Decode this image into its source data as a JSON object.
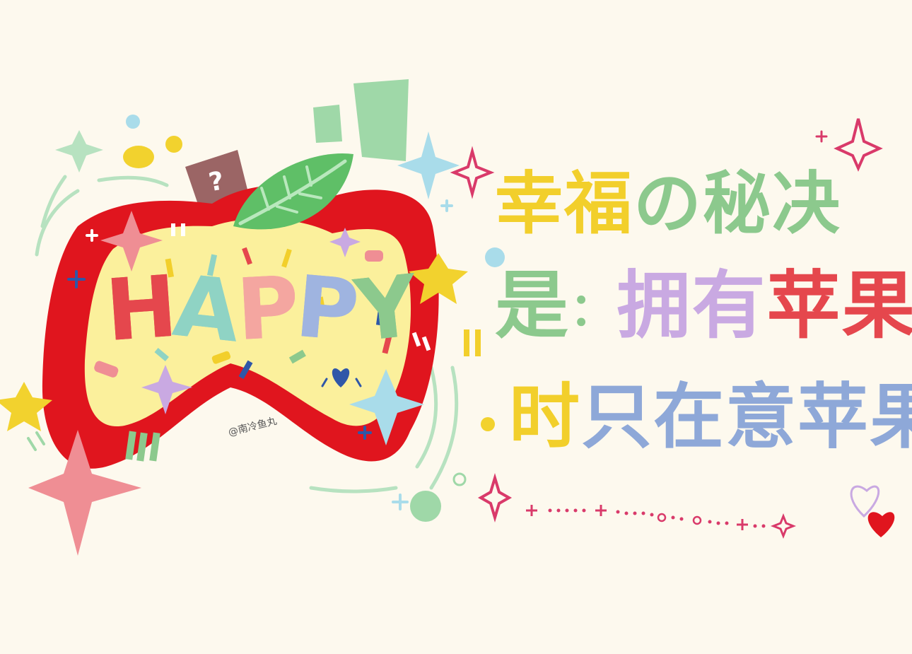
{
  "artwork": {
    "happy_word": [
      "H",
      "A",
      "P",
      "P",
      "Y"
    ],
    "happy_colors": [
      "#e5474d",
      "#8fd3c4",
      "#f4a6a0",
      "#9fb4e0",
      "#8cc98d"
    ],
    "line1": {
      "chars": [
        "幸",
        "福",
        "の",
        "秘",
        "决"
      ],
      "colors": [
        "#f2cf2b",
        "#f2cf2b",
        "#8cc98d",
        "#8cc98d",
        "#8cc98d"
      ]
    },
    "line2": {
      "chars": [
        "是",
        "：",
        "拥",
        "有",
        "苹",
        "果"
      ],
      "colors": [
        "#8cc98d",
        "#8cc98d",
        "#c9a9e2",
        "#c9a9e2",
        "#e5474d",
        "#e5474d"
      ]
    },
    "line3": {
      "chars": [
        "时",
        "只",
        "在",
        "意",
        "苹",
        "果"
      ],
      "colors": [
        "#f2cf2b",
        "#8ea8d8",
        "#8ea8d8",
        "#8ea8d8",
        "#8ea8d8",
        "#8ea8d8"
      ]
    },
    "signature": "@南冷鱼丸",
    "palette": {
      "background": "#fdf9ee",
      "apple_red": "#e0151e",
      "apple_inner": "#fbf09c",
      "leaf_green": "#5fbf67",
      "stem": "#9b6565",
      "mint": "#9fd8a8",
      "sky": "#a9dcea",
      "yellow": "#f2cf2b",
      "pink": "#ef8e94",
      "lavender": "#c9a9e2",
      "magenta": "#d93a6a",
      "navy": "#2f57a8"
    }
  }
}
